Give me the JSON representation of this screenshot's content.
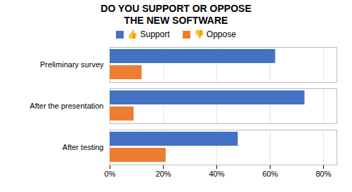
{
  "chart_data": {
    "type": "bar",
    "orientation": "horizontal",
    "title": "DO YOU SUPPORT OR OPPOSE\nTHE NEW SOFTWARE",
    "categories": [
      "Preliminary survey",
      "After the presentation",
      "After testing"
    ],
    "series": [
      {
        "name": "👍 Support",
        "color": "#4472C4",
        "values": [
          0.62,
          0.73,
          0.48
        ]
      },
      {
        "name": "👎 Oppose",
        "color": "#ED7D31",
        "values": [
          0.12,
          0.09,
          0.21
        ]
      }
    ],
    "xlim": [
      0,
      0.85
    ],
    "xticks": [
      {
        "value": 0,
        "label": "0%"
      },
      {
        "value": 0.2,
        "label": "20%"
      },
      {
        "value": 0.4,
        "label": "40%"
      },
      {
        "value": 0.6,
        "label": "60%"
      },
      {
        "value": 0.8,
        "label": "80%"
      }
    ],
    "grid": true,
    "legend": "top"
  }
}
